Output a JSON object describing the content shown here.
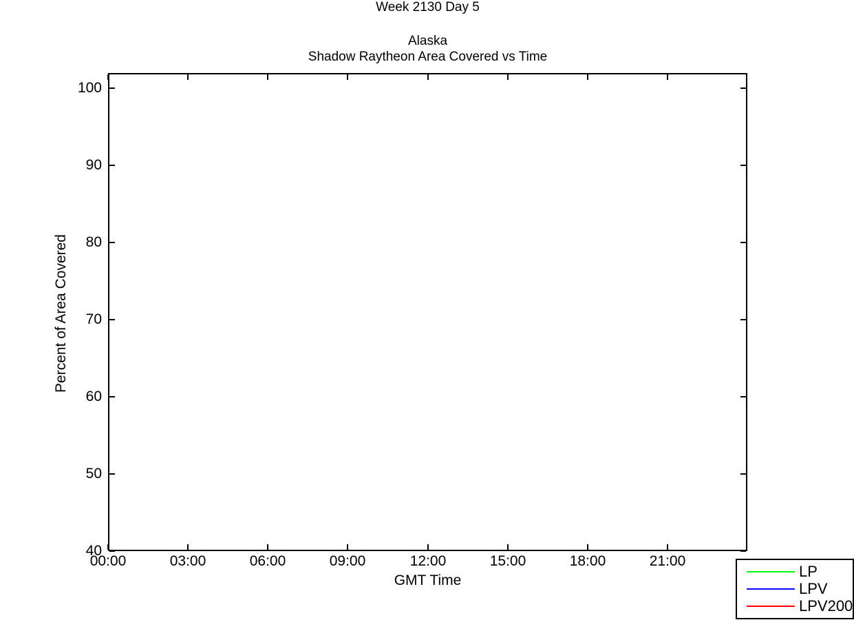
{
  "chart_data": {
    "type": "line",
    "title": "Week 2130 Day 5",
    "subtitle": [
      "Alaska",
      "Shadow Raytheon Area Covered vs Time"
    ],
    "xlabel": "GMT Time",
    "ylabel": "Percent of Area Covered",
    "x": {
      "lim_hours": [
        0,
        24
      ],
      "tick_hours": [
        0,
        3,
        6,
        9,
        12,
        15,
        18,
        21
      ],
      "tick_labels": [
        "00:00",
        "03:00",
        "06:00",
        "09:00",
        "12:00",
        "15:00",
        "18:00",
        "21:00"
      ]
    },
    "y": {
      "lim": [
        40,
        102
      ],
      "ticks": [
        40,
        50,
        60,
        70,
        80,
        90,
        100
      ],
      "tick_labels": [
        "40",
        "50",
        "60",
        "70",
        "80",
        "90",
        "100"
      ]
    },
    "grid": false,
    "axis_color": "#000000",
    "background_color": "#ffffff",
    "legend": {
      "position": "bottom-right",
      "entries": [
        {
          "label": "LP",
          "color": "#00ff00"
        },
        {
          "label": "LPV",
          "color": "#0000ff"
        },
        {
          "label": "LPV200",
          "color": "#ff0000"
        }
      ]
    },
    "series": [
      {
        "name": "LP",
        "color": "#00ff00",
        "x": [],
        "y": []
      },
      {
        "name": "LPV",
        "color": "#0000ff",
        "x": [],
        "y": []
      },
      {
        "name": "LPV200",
        "color": "#ff0000",
        "x": [],
        "y": []
      }
    ]
  }
}
